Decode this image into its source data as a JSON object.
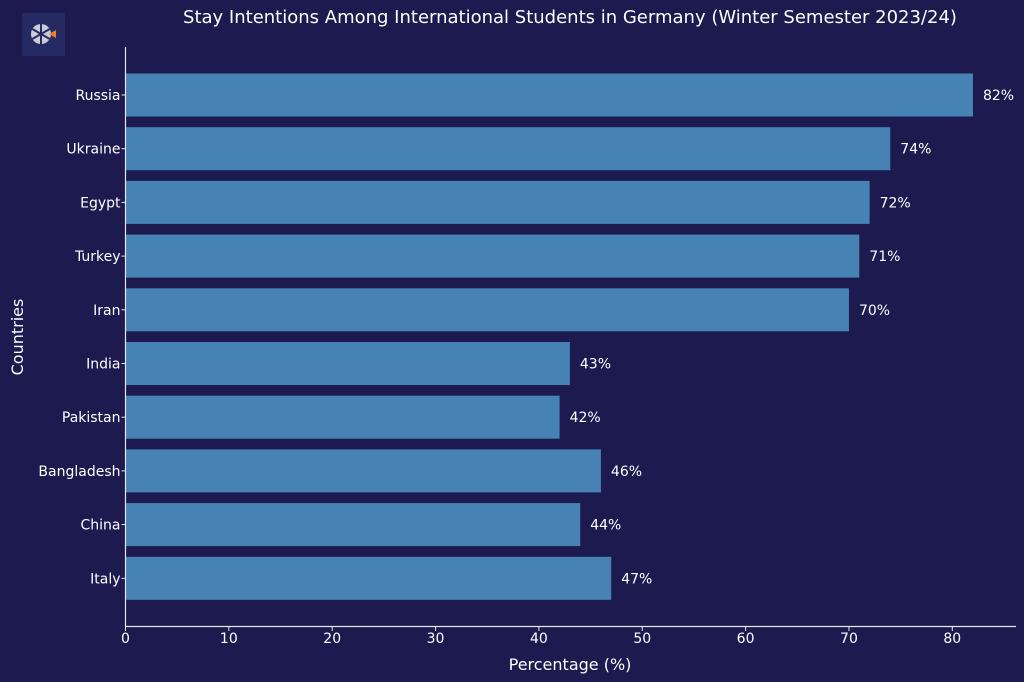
{
  "chart_data": {
    "type": "bar",
    "orientation": "horizontal",
    "title": "Stay Intentions Among International Students in Germany (Winter Semester 2023/24)",
    "xlabel": "Percentage (%)",
    "ylabel": "Countries",
    "categories": [
      "Russia",
      "Ukraine",
      "Egypt",
      "Turkey",
      "Iran",
      "India",
      "Pakistan",
      "Bangladesh",
      "China",
      "Italy"
    ],
    "values": [
      82,
      74,
      72,
      71,
      70,
      43,
      42,
      46,
      44,
      47
    ],
    "data_labels": [
      "82%",
      "74%",
      "72%",
      "71%",
      "70%",
      "43%",
      "42%",
      "46%",
      "44%",
      "47%"
    ],
    "xlim": [
      0,
      86
    ],
    "xticks": [
      0,
      10,
      20,
      30,
      40,
      50,
      60,
      70,
      80
    ],
    "grid": false,
    "legend": "none"
  },
  "colors": {
    "background": "#1c1a4f",
    "bar": "#4682b4",
    "text": "#ffffff",
    "axis": "#e6e6f0",
    "logo_accent": "#f07d28"
  },
  "icons": {
    "logo": "app-logo-icon"
  }
}
